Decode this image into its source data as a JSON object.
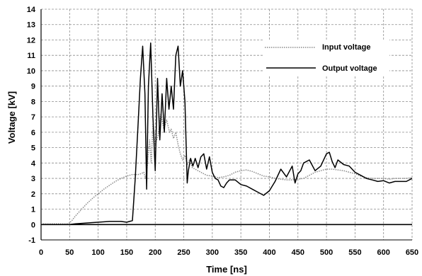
{
  "chart_data": {
    "type": "line",
    "xlabel": "Time [ns]",
    "ylabel": "Voltage [kV]",
    "xlim": [
      0,
      650
    ],
    "ylim": [
      -1,
      14
    ],
    "x_ticks": [
      0,
      50,
      100,
      150,
      200,
      250,
      300,
      350,
      400,
      450,
      500,
      550,
      600,
      650
    ],
    "y_ticks": [
      -1,
      0,
      1,
      2,
      3,
      4,
      5,
      6,
      7,
      8,
      9,
      10,
      11,
      12,
      13,
      14
    ],
    "grid": true,
    "legend_position": "top-right",
    "series": [
      {
        "name": "Input voltage",
        "style": "dotted",
        "color": "#8a8a8a",
        "x": [
          0,
          45,
          50,
          55,
          60,
          70,
          80,
          90,
          100,
          110,
          120,
          130,
          140,
          150,
          160,
          170,
          175,
          180,
          183,
          186,
          190,
          193,
          196,
          200,
          205,
          210,
          215,
          220,
          225,
          228,
          232,
          236,
          240,
          244,
          248,
          252,
          256,
          260,
          265,
          270,
          280,
          290,
          300,
          310,
          320,
          330,
          340,
          350,
          360,
          370,
          380,
          390,
          400,
          410,
          420,
          430,
          440,
          450,
          460,
          470,
          480,
          490,
          500,
          510,
          520,
          530,
          540,
          550,
          560,
          570,
          580,
          590,
          600,
          610,
          620,
          630,
          640,
          650
        ],
        "y": [
          0.05,
          0.05,
          0.1,
          0.3,
          0.55,
          0.95,
          1.35,
          1.7,
          2.0,
          2.3,
          2.55,
          2.8,
          3.0,
          3.15,
          3.25,
          3.25,
          3.3,
          3.4,
          3.0,
          3.8,
          5.5,
          4.0,
          6.5,
          5.2,
          5.8,
          7.2,
          6.2,
          6.8,
          6.0,
          6.2,
          5.6,
          6.0,
          5.2,
          4.6,
          4.2,
          4.5,
          3.9,
          4.2,
          3.7,
          3.6,
          3.4,
          3.2,
          3.15,
          3.05,
          3.1,
          3.2,
          3.4,
          3.5,
          3.55,
          3.45,
          3.3,
          3.15,
          3.1,
          3.0,
          2.95,
          2.9,
          2.9,
          2.95,
          3.0,
          3.2,
          3.4,
          3.5,
          3.6,
          3.6,
          3.55,
          3.5,
          3.4,
          3.3,
          3.15,
          3.05,
          3.0,
          3.0,
          3.0,
          2.95,
          3.0,
          3.0,
          3.0,
          3.05
        ]
      },
      {
        "name": "Output voltage",
        "style": "solid",
        "color": "#000000",
        "x": [
          0,
          40,
          50,
          60,
          80,
          100,
          120,
          140,
          150,
          155,
          160,
          165,
          170,
          174,
          178,
          182,
          185,
          188,
          192,
          196,
          200,
          204,
          208,
          212,
          216,
          220,
          224,
          228,
          232,
          236,
          240,
          244,
          248,
          252,
          256,
          258,
          262,
          266,
          270,
          275,
          280,
          285,
          290,
          295,
          300,
          305,
          310,
          315,
          320,
          325,
          330,
          340,
          350,
          360,
          370,
          380,
          390,
          400,
          410,
          420,
          430,
          440,
          445,
          450,
          455,
          460,
          470,
          480,
          490,
          500,
          505,
          510,
          515,
          520,
          530,
          540,
          550,
          560,
          570,
          580,
          590,
          600,
          610,
          620,
          630,
          640,
          650
        ],
        "y": [
          0.0,
          0.0,
          0.0,
          0.05,
          0.1,
          0.15,
          0.2,
          0.2,
          0.15,
          0.2,
          0.25,
          3.0,
          6.5,
          9.5,
          11.6,
          8.5,
          2.3,
          9.0,
          11.8,
          7.0,
          3.5,
          9.5,
          5.5,
          8.5,
          6.0,
          9.5,
          7.5,
          9.0,
          7.5,
          11.0,
          11.6,
          9.0,
          10.0,
          8.0,
          2.7,
          3.5,
          4.3,
          3.8,
          4.3,
          3.7,
          4.4,
          4.6,
          3.6,
          4.4,
          3.4,
          3.0,
          2.9,
          2.5,
          2.4,
          2.7,
          2.9,
          2.9,
          2.6,
          2.5,
          2.3,
          2.1,
          1.9,
          2.2,
          2.8,
          3.6,
          3.1,
          3.8,
          2.7,
          3.3,
          3.5,
          4.0,
          4.2,
          3.5,
          3.8,
          4.6,
          4.7,
          4.1,
          3.7,
          4.2,
          3.9,
          3.8,
          3.4,
          3.2,
          3.0,
          2.9,
          2.8,
          2.85,
          2.7,
          2.8,
          2.8,
          2.8,
          3.0
        ]
      }
    ]
  }
}
